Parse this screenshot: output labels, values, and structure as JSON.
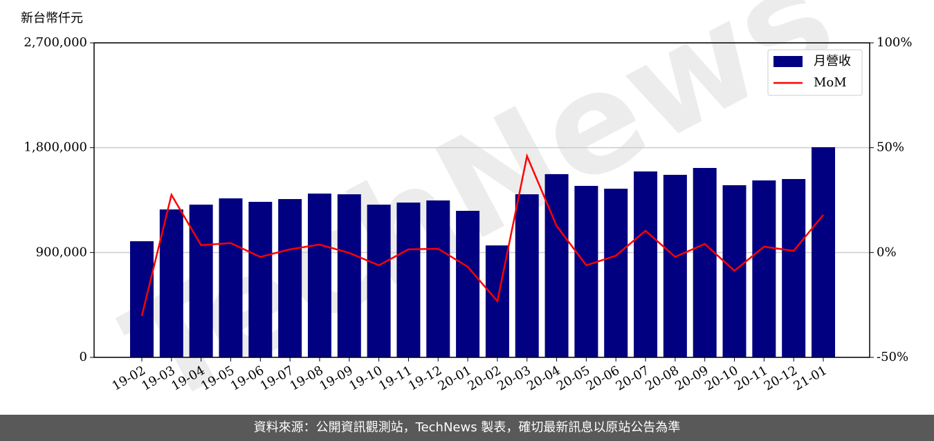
{
  "chart_data": {
    "type": "bar_line",
    "y_axis_label": "新台幣仟元",
    "watermark": "TechNews",
    "footer": "資料來源：公開資訊觀測站，TechNews 製表，確切最新訊息以原站公告為準",
    "categories": [
      "19-02",
      "19-03",
      "19-04",
      "19-05",
      "19-06",
      "19-07",
      "19-08",
      "19-09",
      "19-10",
      "19-11",
      "19-12",
      "20-01",
      "20-02",
      "20-03",
      "20-04",
      "20-05",
      "20-06",
      "20-07",
      "20-08",
      "20-09",
      "20-10",
      "20-11",
      "20-12",
      "21-01"
    ],
    "series": [
      {
        "name": "月營收",
        "color": "#000080",
        "kind": "bar",
        "axis": "y",
        "values": [
          997000,
          1270000,
          1311000,
          1365000,
          1335000,
          1359000,
          1406000,
          1400000,
          1311000,
          1329000,
          1347000,
          1258000,
          961000,
          1400000,
          1573000,
          1472000,
          1448000,
          1596000,
          1567000,
          1626000,
          1478000,
          1519000,
          1531000,
          1804000
        ]
      },
      {
        "name": "MoM",
        "color": "#ff0000",
        "kind": "line",
        "axis": "y2",
        "values": [
          -30.2,
          27.5,
          3.5,
          4.5,
          -2.1,
          1.5,
          3.8,
          -0.2,
          -6.1,
          1.5,
          1.8,
          -6.8,
          -23.2,
          46,
          12.7,
          -6.1,
          -1.5,
          10.4,
          -2.1,
          4.1,
          -8.7,
          2.8,
          0.8,
          18.0
        ]
      }
    ],
    "ylim": [
      0,
      2700000
    ],
    "yticks": [
      0,
      {
        "value": 900000,
        "label": "900,000"
      },
      {
        "value": 1800000,
        "label": "1,800,000"
      },
      {
        "value": 2700000,
        "label": "2,700,000"
      }
    ],
    "y2lim": [
      -50,
      100
    ],
    "y2ticks": [
      {
        "value": -50,
        "label": "-50%"
      },
      {
        "value": 0,
        "label": "0%"
      },
      {
        "value": 50,
        "label": "50%"
      },
      {
        "value": 100,
        "label": "100%"
      }
    ],
    "grid": true,
    "legend": "upper right"
  }
}
